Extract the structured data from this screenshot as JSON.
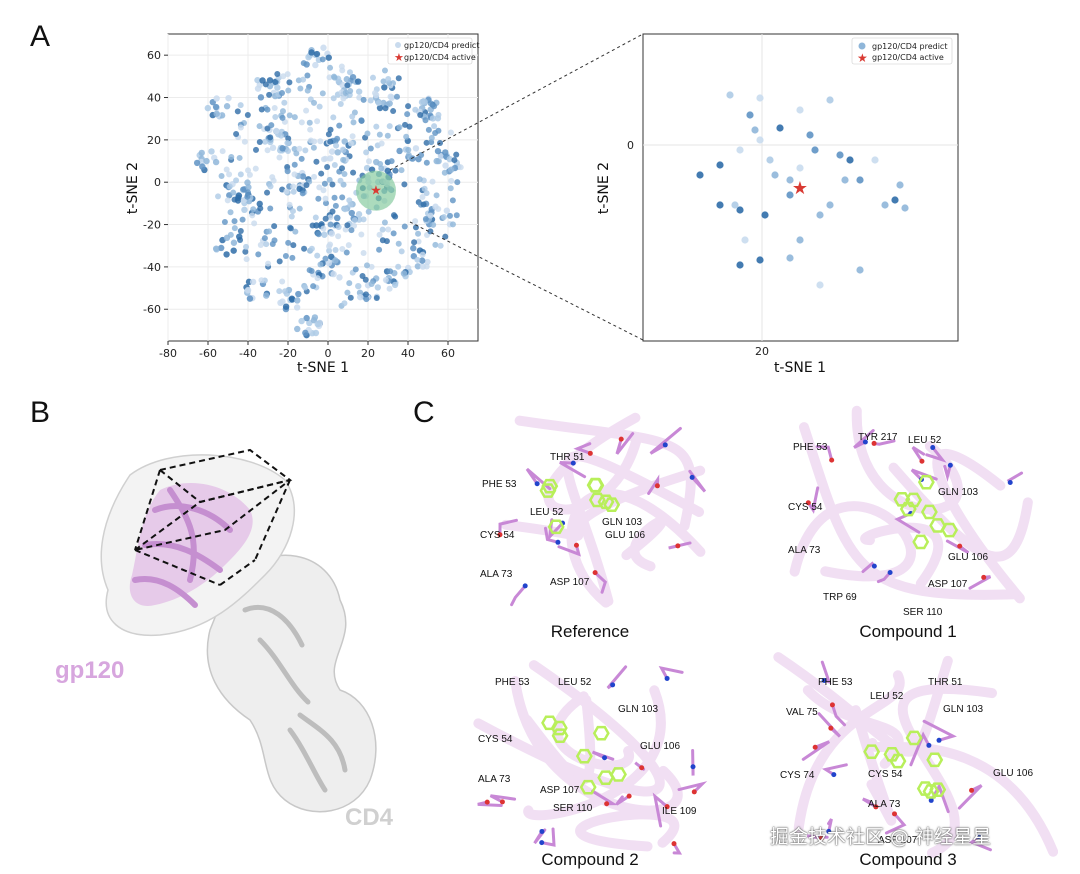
{
  "panels": {
    "a": "A",
    "b": "B",
    "c": "C"
  },
  "colors": {
    "predict_light": "#c9dbee",
    "predict_mid": "#8fb6d9",
    "predict_dark": "#2f6da8",
    "active": "#d93a33",
    "highlight": "#7fc79a",
    "gp120": "#d7a6de",
    "cd4": "#d0d0d0",
    "ligand": "#b8ef5a",
    "residue": "#c888d6"
  },
  "chart_data": [
    {
      "type": "scatter",
      "title": "",
      "xlabel": "t-SNE 1",
      "ylabel": "t-SNE 2",
      "xlim": [
        -80,
        75
      ],
      "ylim": [
        -75,
        70
      ],
      "xticks": [
        -80,
        -60,
        -40,
        -20,
        0,
        20,
        40,
        60
      ],
      "yticks": [
        -60,
        -40,
        -20,
        0,
        20,
        40,
        60
      ],
      "grid": true,
      "legend_position": "top-right",
      "series": [
        {
          "name": "gp120/CD4 predict",
          "marker": "circle",
          "color_scale": "blues"
        },
        {
          "name": "gp120/CD4 active",
          "marker": "star",
          "color": "#d93a33",
          "points": [
            [
              24,
              -4
            ]
          ]
        }
      ],
      "highlight_region": {
        "center": [
          24,
          -4
        ],
        "radius": 10
      }
    },
    {
      "type": "scatter",
      "title": "",
      "xlabel": "t-SNE 1",
      "ylabel": "t-SNE 2",
      "xticks": [
        20
      ],
      "yticks": [
        0
      ],
      "grid": true,
      "legend_position": "top-right",
      "series": [
        {
          "name": "gp120/CD4 predict",
          "marker": "circle",
          "color_scale": "blues"
        },
        {
          "name": "gp120/CD4 active",
          "marker": "star",
          "color": "#d93a33"
        }
      ]
    }
  ],
  "structure": {
    "gp120_label": "gp120",
    "cd4_label": "CD4"
  },
  "docking": [
    {
      "caption": "Reference",
      "residues": [
        "THR 51",
        "PHE 53",
        "GLN 103",
        "LEU 52",
        "CYS 54",
        "GLU 106",
        "ALA 73",
        "ASP 107"
      ]
    },
    {
      "caption": "Compound 1",
      "residues": [
        "TYR 217",
        "LEU 52",
        "PHE 53",
        "GLN 103",
        "CYS 54",
        "ALA 73",
        "GLU 106",
        "ASP 107",
        "TRP 69",
        "SER 110"
      ]
    },
    {
      "caption": "Compound 2",
      "residues": [
        "PHE 53",
        "LEU 52",
        "GLN 103",
        "CYS 54",
        "GLU 106",
        "ALA 73",
        "ASP 107",
        "SER 110",
        "ILE 109"
      ]
    },
    {
      "caption": "Compound 3",
      "residues": [
        "PHE 53",
        "THR 51",
        "LEU 52",
        "GLN 103",
        "VAL 75",
        "CYS 74",
        "CYS 54",
        "GLU 106",
        "ALA 73",
        "ASP 107"
      ]
    }
  ],
  "watermark": "掘金技术社区 @ 神经星星"
}
